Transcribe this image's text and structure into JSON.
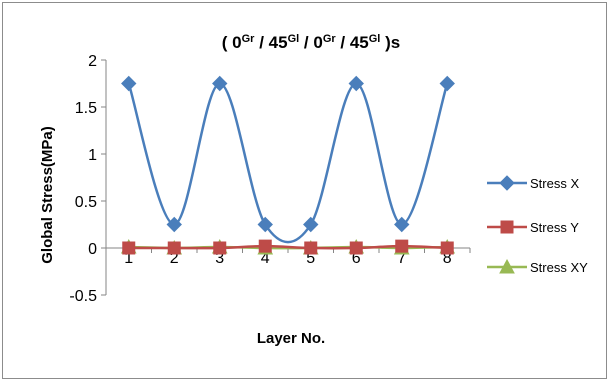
{
  "chart_data": {
    "type": "line",
    "title": {
      "parts": [
        {
          "text": "( 0",
          "sup": false
        },
        {
          "text": "Gr",
          "sup": true
        },
        {
          "text": " / 45",
          "sup": false
        },
        {
          "text": "Gl",
          "sup": true
        },
        {
          "text": " / 0",
          "sup": false
        },
        {
          "text": "Gr",
          "sup": true
        },
        {
          "text": " / 45",
          "sup": false
        },
        {
          "text": "Gl",
          "sup": true
        },
        {
          "text": " )s",
          "sup": false
        }
      ]
    },
    "xlabel": "Layer No.",
    "ylabel": "Global Stress(MPa)",
    "categories": [
      "1",
      "2",
      "3",
      "4",
      "5",
      "6",
      "7",
      "8"
    ],
    "ylim": [
      -0.5,
      2
    ],
    "yticks": [
      "-0.5",
      "0",
      "0.5",
      "1",
      "1.5",
      "2"
    ],
    "smooth": true,
    "legend_position": "right",
    "series": [
      {
        "name": "Stress X",
        "color": "#4a7ebb",
        "marker": "diamond",
        "values": [
          1.75,
          0.25,
          1.75,
          0.25,
          0.25,
          1.75,
          0.25,
          1.75
        ]
      },
      {
        "name": "Stress Y",
        "color": "#be4b48",
        "marker": "square",
        "values": [
          0,
          0,
          0,
          0.02,
          0,
          0,
          0.02,
          0
        ]
      },
      {
        "name": "Stress XY",
        "color": "#98b954",
        "marker": "triangle",
        "values": [
          0.01,
          0,
          0.01,
          0,
          0,
          0.01,
          0,
          0.01
        ]
      }
    ]
  }
}
